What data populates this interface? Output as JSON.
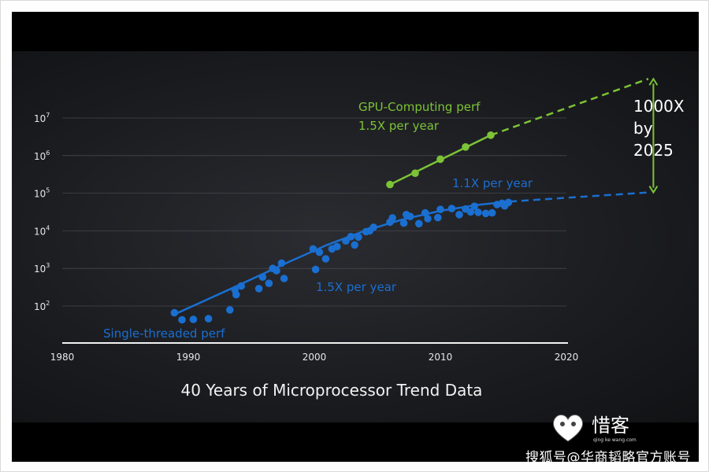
{
  "chart_data": {
    "type": "scatter",
    "title": "40 Years of Microprocessor Trend Data",
    "x_ticks": [
      "1980",
      "1990",
      "2000",
      "2010",
      "2020"
    ],
    "x_tick_values": [
      1980,
      1990,
      2000,
      2010,
      2020
    ],
    "xlim": [
      1980,
      2020
    ],
    "y_scale": "log",
    "y_ticks": [
      {
        "base": "10",
        "exp": "2",
        "value": 100
      },
      {
        "base": "10",
        "exp": "3",
        "value": 1000
      },
      {
        "base": "10",
        "exp": "4",
        "value": 10000
      },
      {
        "base": "10",
        "exp": "5",
        "value": 100000
      },
      {
        "base": "10",
        "exp": "6",
        "value": 1000000
      },
      {
        "base": "10",
        "exp": "7",
        "value": 10000000
      }
    ],
    "grid": true,
    "series": [
      {
        "name": "Single-threaded perf",
        "color": "#1a6fd0",
        "points": [
          [
            1988.9,
            66
          ],
          [
            1989.5,
            43
          ],
          [
            1990.4,
            44
          ],
          [
            1991.6,
            46
          ],
          [
            1993.3,
            79
          ],
          [
            1993.7,
            270
          ],
          [
            1993.8,
            200
          ],
          [
            1994.2,
            340
          ],
          [
            1995.6,
            290
          ],
          [
            1995.9,
            590
          ],
          [
            1996.4,
            400
          ],
          [
            1996.7,
            1000
          ],
          [
            1997.0,
            870
          ],
          [
            1997.4,
            1380
          ],
          [
            1997.6,
            540
          ],
          [
            1999.9,
            3300
          ],
          [
            2000.1,
            940
          ],
          [
            2000.4,
            2700
          ],
          [
            2000.9,
            1800
          ],
          [
            2001.4,
            3300
          ],
          [
            2001.8,
            3800
          ],
          [
            2002.5,
            5400
          ],
          [
            2002.9,
            7000
          ],
          [
            2003.2,
            4200
          ],
          [
            2003.5,
            6800
          ],
          [
            2004.1,
            9500
          ],
          [
            2004.4,
            10000
          ],
          [
            2004.7,
            12400
          ],
          [
            2006.0,
            17000
          ],
          [
            2006.2,
            22000
          ],
          [
            2007.1,
            16000
          ],
          [
            2007.3,
            27000
          ],
          [
            2007.6,
            24000
          ],
          [
            2008.3,
            15500
          ],
          [
            2008.8,
            30000
          ],
          [
            2009.0,
            21000
          ],
          [
            2009.8,
            22500
          ],
          [
            2010.0,
            37000
          ],
          [
            2010.9,
            39000
          ],
          [
            2011.5,
            27000
          ],
          [
            2012.0,
            38000
          ],
          [
            2012.4,
            32000
          ],
          [
            2012.7,
            45000
          ],
          [
            2013.0,
            31000
          ],
          [
            2013.6,
            29000
          ],
          [
            2014.1,
            30000
          ],
          [
            2014.5,
            50000
          ],
          [
            2014.9,
            54000
          ],
          [
            2015.1,
            46000
          ],
          [
            2015.4,
            57000
          ]
        ],
        "fit_line": [
          [
            1989,
            62
          ],
          [
            1993.5,
            300
          ],
          [
            1998,
            1500
          ],
          [
            2001,
            4200
          ],
          [
            2004,
            10000
          ],
          [
            2007,
            20000
          ],
          [
            2010,
            34000
          ],
          [
            2013,
            49000
          ],
          [
            2015.5,
            60000
          ]
        ],
        "trend_label": "1.5X per year",
        "projection_label": "1.1X per year",
        "projection": [
          [
            2015.5,
            60000
          ],
          [
            2026.5,
            105000
          ]
        ]
      },
      {
        "name": "GPU-Computing perf",
        "color": "#7cc336",
        "points": [
          [
            2006.0,
            170000
          ],
          [
            2008.0,
            340000
          ],
          [
            2010.0,
            800000
          ],
          [
            2012.0,
            1700000
          ],
          [
            2014.0,
            3500000
          ]
        ],
        "fit_line": [
          [
            2006.0,
            170000
          ],
          [
            2014.0,
            3500000
          ]
        ],
        "trend_label": "1.5X per year",
        "projection": [
          [
            2014.0,
            3500000
          ],
          [
            2026.5,
            110000000
          ]
        ]
      }
    ],
    "annotation": {
      "lines": [
        "1000X",
        "by",
        "2025"
      ],
      "from_value": 105000,
      "to_value": 110000000,
      "at_year": 2026.9
    }
  },
  "watermark": {
    "logo_text": "惜客",
    "logo_subtext": "qing ke wang.com",
    "platform_text": "搜狐号@华商韬略官方账号"
  }
}
